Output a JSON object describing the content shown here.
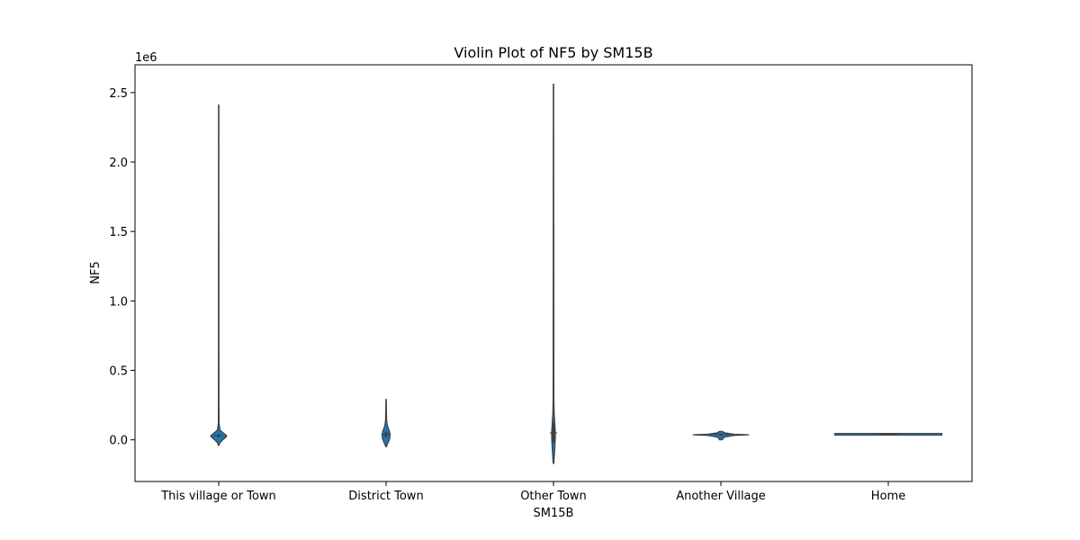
{
  "chart_data": {
    "type": "violin",
    "title": "Violin Plot of NF5 by SM15B",
    "xlabel": "SM15B",
    "ylabel": "NF5",
    "y_offset_label": "1e6",
    "ylim": [
      -0.3,
      2.7
    ],
    "y_ticks": [
      "0.0",
      "0.5",
      "1.0",
      "1.5",
      "2.0",
      "2.5"
    ],
    "grid": false,
    "legend": "none",
    "color": "#1f77b4",
    "categories": [
      "This village or Town",
      "District Town",
      "Other Town",
      "Another Village",
      "Home"
    ],
    "violins": [
      {
        "category": "This village or Town",
        "min": -0.04,
        "max": 2.41,
        "q1": 0.02,
        "median": 0.03,
        "q3": 0.04,
        "profile": [
          [
            -0.04,
            0.004
          ],
          [
            -0.02,
            0.02
          ],
          [
            0.0,
            0.06
          ],
          [
            0.02,
            0.11
          ],
          [
            0.03,
            0.12
          ],
          [
            0.045,
            0.08
          ],
          [
            0.07,
            0.02
          ],
          [
            0.12,
            0.006
          ],
          [
            0.3,
            0.004
          ],
          [
            2.41,
            0.003
          ]
        ]
      },
      {
        "category": "District Town",
        "min": -0.05,
        "max": 0.29,
        "q1": 0.02,
        "median": 0.04,
        "q3": 0.06,
        "profile": [
          [
            -0.05,
            0.004
          ],
          [
            -0.02,
            0.03
          ],
          [
            0.01,
            0.055
          ],
          [
            0.04,
            0.06
          ],
          [
            0.07,
            0.045
          ],
          [
            0.1,
            0.02
          ],
          [
            0.14,
            0.008
          ],
          [
            0.2,
            0.005
          ],
          [
            0.29,
            0.003
          ]
        ]
      },
      {
        "category": "Other Town",
        "min": -0.17,
        "max": 2.56,
        "q1": -0.02,
        "median": 0.05,
        "q3": 0.12,
        "profile": [
          [
            -0.17,
            0.004
          ],
          [
            -0.1,
            0.015
          ],
          [
            0.0,
            0.026
          ],
          [
            0.05,
            0.028
          ],
          [
            0.1,
            0.022
          ],
          [
            0.2,
            0.01
          ],
          [
            0.3,
            0.005
          ],
          [
            2.56,
            0.003
          ]
        ]
      },
      {
        "category": "Another Village",
        "min": 0.0,
        "max": 0.06,
        "q1": 0.03,
        "median": 0.04,
        "q3": 0.04,
        "profile": [
          [
            0.0,
            0.02
          ],
          [
            0.02,
            0.05
          ],
          [
            0.032,
            0.2
          ],
          [
            0.036,
            0.42
          ],
          [
            0.04,
            0.2
          ],
          [
            0.05,
            0.06
          ],
          [
            0.06,
            0.02
          ]
        ]
      },
      {
        "category": "Home",
        "min": 0.04,
        "max": 0.04,
        "q1": 0.04,
        "median": 0.04,
        "q3": 0.04,
        "profile": [
          [
            0.04,
            0.8
          ]
        ]
      }
    ]
  }
}
